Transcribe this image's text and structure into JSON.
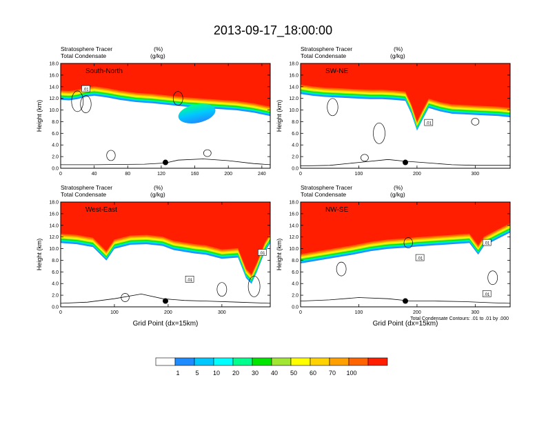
{
  "figure_title": "2013-09-17_18:00:00",
  "chart_data": {
    "type": "heatmap",
    "title": "2013-09-17_18:00:00",
    "panels": [
      {
        "name": "South-North",
        "left_labels": [
          "Stratosphere Tracer",
          "Total Condensate"
        ],
        "right_labels": [
          "(%)",
          "(g/kg)"
        ],
        "xlim": [
          0,
          250
        ],
        "xticks": [
          "0",
          "40",
          "80",
          "120",
          "160",
          "200",
          "240"
        ],
        "xtick_values": [
          0,
          40,
          80,
          120,
          160,
          200,
          240
        ],
        "ylim": [
          0,
          18
        ],
        "yticks": [
          "0.0",
          "2.0",
          "4.0",
          "6.0",
          "8.0",
          "10.0",
          "12.0",
          "14.0",
          "16.0",
          "18.0"
        ],
        "ylabel": "Height (km)",
        "xlabel": "",
        "tropopause_km": [
          [
            0,
            13.8
          ],
          [
            10,
            13.7
          ],
          [
            20,
            13.9
          ],
          [
            30,
            14.3
          ],
          [
            40,
            14.5
          ],
          [
            55,
            14.2
          ],
          [
            70,
            13.8
          ],
          [
            90,
            13.4
          ],
          [
            110,
            13.2
          ],
          [
            130,
            12.9
          ],
          [
            150,
            12.6
          ],
          [
            170,
            12.4
          ],
          [
            190,
            12.2
          ],
          [
            210,
            12.0
          ],
          [
            230,
            11.6
          ],
          [
            250,
            11.0
          ]
        ],
        "intrusions": [
          {
            "x": [
              140,
              185
            ],
            "z_top": 11.0,
            "z_bot": 7.8
          }
        ],
        "contour_labels": [
          {
            "text": ".01",
            "x": 30,
            "y": 13.6
          }
        ],
        "cloud_base": [
          [
            0,
            0.6
          ],
          [
            40,
            0.6
          ],
          [
            100,
            0.7
          ],
          [
            125,
            0.9
          ],
          [
            140,
            1.4
          ],
          [
            170,
            1.6
          ],
          [
            200,
            1.3
          ],
          [
            230,
            0.8
          ],
          [
            250,
            0.6
          ]
        ],
        "clouds": [
          [
            20,
            11.5,
            3
          ],
          [
            30,
            11.0,
            2.5
          ],
          [
            60,
            2.2,
            1.5
          ],
          [
            140,
            12.0,
            2
          ],
          [
            175,
            2.6,
            1
          ]
        ],
        "dot": {
          "x": 125,
          "z": 1.0
        }
      },
      {
        "name": "SW-NE",
        "left_labels": [
          "Stratosphere Tracer",
          "Total Condensate"
        ],
        "right_labels": [
          "(%)",
          "(g/kg)"
        ],
        "xlim": [
          0,
          360
        ],
        "xticks": [
          "0",
          "100",
          "200",
          "300"
        ],
        "xtick_values": [
          0,
          100,
          200,
          300
        ],
        "ylim": [
          0,
          18
        ],
        "yticks": [
          "0.0",
          "2.0",
          "4.0",
          "6.0",
          "8.0",
          "10.0",
          "12.0",
          "14.0",
          "16.0",
          "18.0"
        ],
        "ylabel": "Height (km)",
        "xlabel": "",
        "tropopause_km": [
          [
            0,
            14.8
          ],
          [
            20,
            14.5
          ],
          [
            40,
            14.3
          ],
          [
            60,
            14.2
          ],
          [
            80,
            14.1
          ],
          [
            100,
            14.0
          ],
          [
            120,
            13.9
          ],
          [
            140,
            13.9
          ],
          [
            160,
            13.8
          ],
          [
            180,
            13.6
          ],
          [
            190,
            11.5
          ],
          [
            200,
            8.5
          ],
          [
            210,
            10.5
          ],
          [
            220,
            12.4
          ],
          [
            240,
            11.8
          ],
          [
            260,
            11.4
          ],
          [
            300,
            11.2
          ],
          [
            340,
            11.0
          ],
          [
            360,
            10.8
          ]
        ],
        "intrusions": [],
        "contour_labels": [
          {
            "text": ".01",
            "x": 220,
            "y": 7.8
          }
        ],
        "cloud_base": [
          [
            0,
            0.4
          ],
          [
            50,
            0.5
          ],
          [
            100,
            1.0
          ],
          [
            150,
            1.5
          ],
          [
            180,
            1.2
          ],
          [
            210,
            1.0
          ],
          [
            260,
            0.6
          ],
          [
            300,
            0.5
          ],
          [
            360,
            0.5
          ]
        ],
        "clouds": [
          [
            55,
            10.5,
            2.5
          ],
          [
            135,
            6.0,
            3
          ],
          [
            110,
            1.8,
            1
          ],
          [
            300,
            8.0,
            1
          ]
        ],
        "dot": {
          "x": 180,
          "z": 1.0
        }
      },
      {
        "name": "West-East",
        "left_labels": [
          "Stratosphere Tracer",
          "Total Condensate"
        ],
        "right_labels": [
          "(%)",
          "(g/kg)"
        ],
        "xlim": [
          0,
          390
        ],
        "xticks": [
          "0",
          "100",
          "200",
          "300"
        ],
        "xtick_values": [
          0,
          100,
          200,
          300
        ],
        "ylim": [
          0,
          18
        ],
        "yticks": [
          "0.0",
          "2.0",
          "4.0",
          "6.0",
          "8.0",
          "10.0",
          "12.0",
          "14.0",
          "16.0",
          "18.0"
        ],
        "ylabel": "Height (km)",
        "xlabel": "Grid Point (dx=15km)",
        "tropopause_km": [
          [
            0,
            13.0
          ],
          [
            30,
            12.8
          ],
          [
            60,
            12.3
          ],
          [
            85,
            10.0
          ],
          [
            100,
            12.0
          ],
          [
            130,
            12.7
          ],
          [
            160,
            12.8
          ],
          [
            190,
            12.5
          ],
          [
            210,
            11.8
          ],
          [
            230,
            11.5
          ],
          [
            250,
            11.2
          ],
          [
            270,
            11.0
          ],
          [
            300,
            10.3
          ],
          [
            330,
            10.5
          ],
          [
            345,
            7.0
          ],
          [
            355,
            6.0
          ],
          [
            365,
            8.0
          ],
          [
            380,
            11.5
          ],
          [
            390,
            13.0
          ]
        ],
        "intrusions": [],
        "contour_labels": [
          {
            "text": ".01",
            "x": 240,
            "y": 4.7
          },
          {
            "text": ".01",
            "x": 375,
            "y": 9.3
          }
        ],
        "cloud_base": [
          [
            0,
            0.6
          ],
          [
            50,
            0.8
          ],
          [
            100,
            1.4
          ],
          [
            150,
            2.2
          ],
          [
            190,
            1.4
          ],
          [
            230,
            1.1
          ],
          [
            270,
            1.0
          ],
          [
            330,
            0.8
          ],
          [
            390,
            0.6
          ]
        ],
        "clouds": [
          [
            120,
            1.6,
            1.2
          ],
          [
            300,
            3.0,
            2
          ],
          [
            360,
            3.5,
            3
          ]
        ],
        "dot": {
          "x": 195,
          "z": 1.0
        }
      },
      {
        "name": "NW-SE",
        "left_labels": [
          "Stratosphere Tracer",
          "Total Condensate"
        ],
        "right_labels": [
          "(%)",
          "(g/kg)"
        ],
        "xlim": [
          0,
          360
        ],
        "xticks": [
          "0",
          "100",
          "200",
          "300"
        ],
        "xtick_values": [
          0,
          100,
          200,
          300
        ],
        "ylim": [
          0,
          18
        ],
        "yticks": [
          "0.0",
          "2.0",
          "4.0",
          "6.0",
          "8.0",
          "10.0",
          "12.0",
          "14.0",
          "16.0",
          "18.0"
        ],
        "ylabel": "Height (km)",
        "xlabel": "Grid Point (dx=15km)",
        "tropopause_km": [
          [
            0,
            9.5
          ],
          [
            30,
            10.0
          ],
          [
            60,
            10.5
          ],
          [
            90,
            11.0
          ],
          [
            120,
            11.6
          ],
          [
            150,
            12.0
          ],
          [
            180,
            12.2
          ],
          [
            200,
            12.4
          ],
          [
            230,
            12.6
          ],
          [
            260,
            12.8
          ],
          [
            290,
            13.0
          ],
          [
            305,
            11.0
          ],
          [
            315,
            12.5
          ],
          [
            340,
            13.8
          ],
          [
            360,
            14.8
          ]
        ],
        "intrusions": [],
        "contour_labels": [
          {
            "text": ".01",
            "x": 205,
            "y": 8.4
          },
          {
            "text": ".01",
            "x": 320,
            "y": 2.2
          },
          {
            "text": ".01",
            "x": 320,
            "y": 11.0
          }
        ],
        "cloud_base": [
          [
            0,
            1.0
          ],
          [
            50,
            1.2
          ],
          [
            100,
            1.6
          ],
          [
            150,
            1.4
          ],
          [
            190,
            1.0
          ],
          [
            230,
            1.0
          ],
          [
            280,
            0.9
          ],
          [
            330,
            0.7
          ],
          [
            360,
            0.6
          ]
        ],
        "clouds": [
          [
            70,
            6.5,
            2
          ],
          [
            185,
            11.0,
            1.5
          ],
          [
            330,
            5.0,
            2
          ]
        ],
        "dot": {
          "x": 180,
          "z": 1.0
        }
      }
    ],
    "colorbar": {
      "levels": [
        "1",
        "5",
        "10",
        "20",
        "30",
        "40",
        "50",
        "60",
        "70",
        "100"
      ],
      "colors": [
        "#ffffff",
        "#1e8cff",
        "#00c8ff",
        "#00ffff",
        "#00ff8c",
        "#00e600",
        "#a0e632",
        "#ffff00",
        "#ffd200",
        "#ffa000",
        "#ff6400",
        "#ff1e00"
      ]
    },
    "contour_info": "Total Condensate Contours: .01 to .01 by .000"
  },
  "colors": {
    "intrusion_blob": "#1e8cff",
    "contour": "#000000",
    "plot_frame": "#000000"
  }
}
